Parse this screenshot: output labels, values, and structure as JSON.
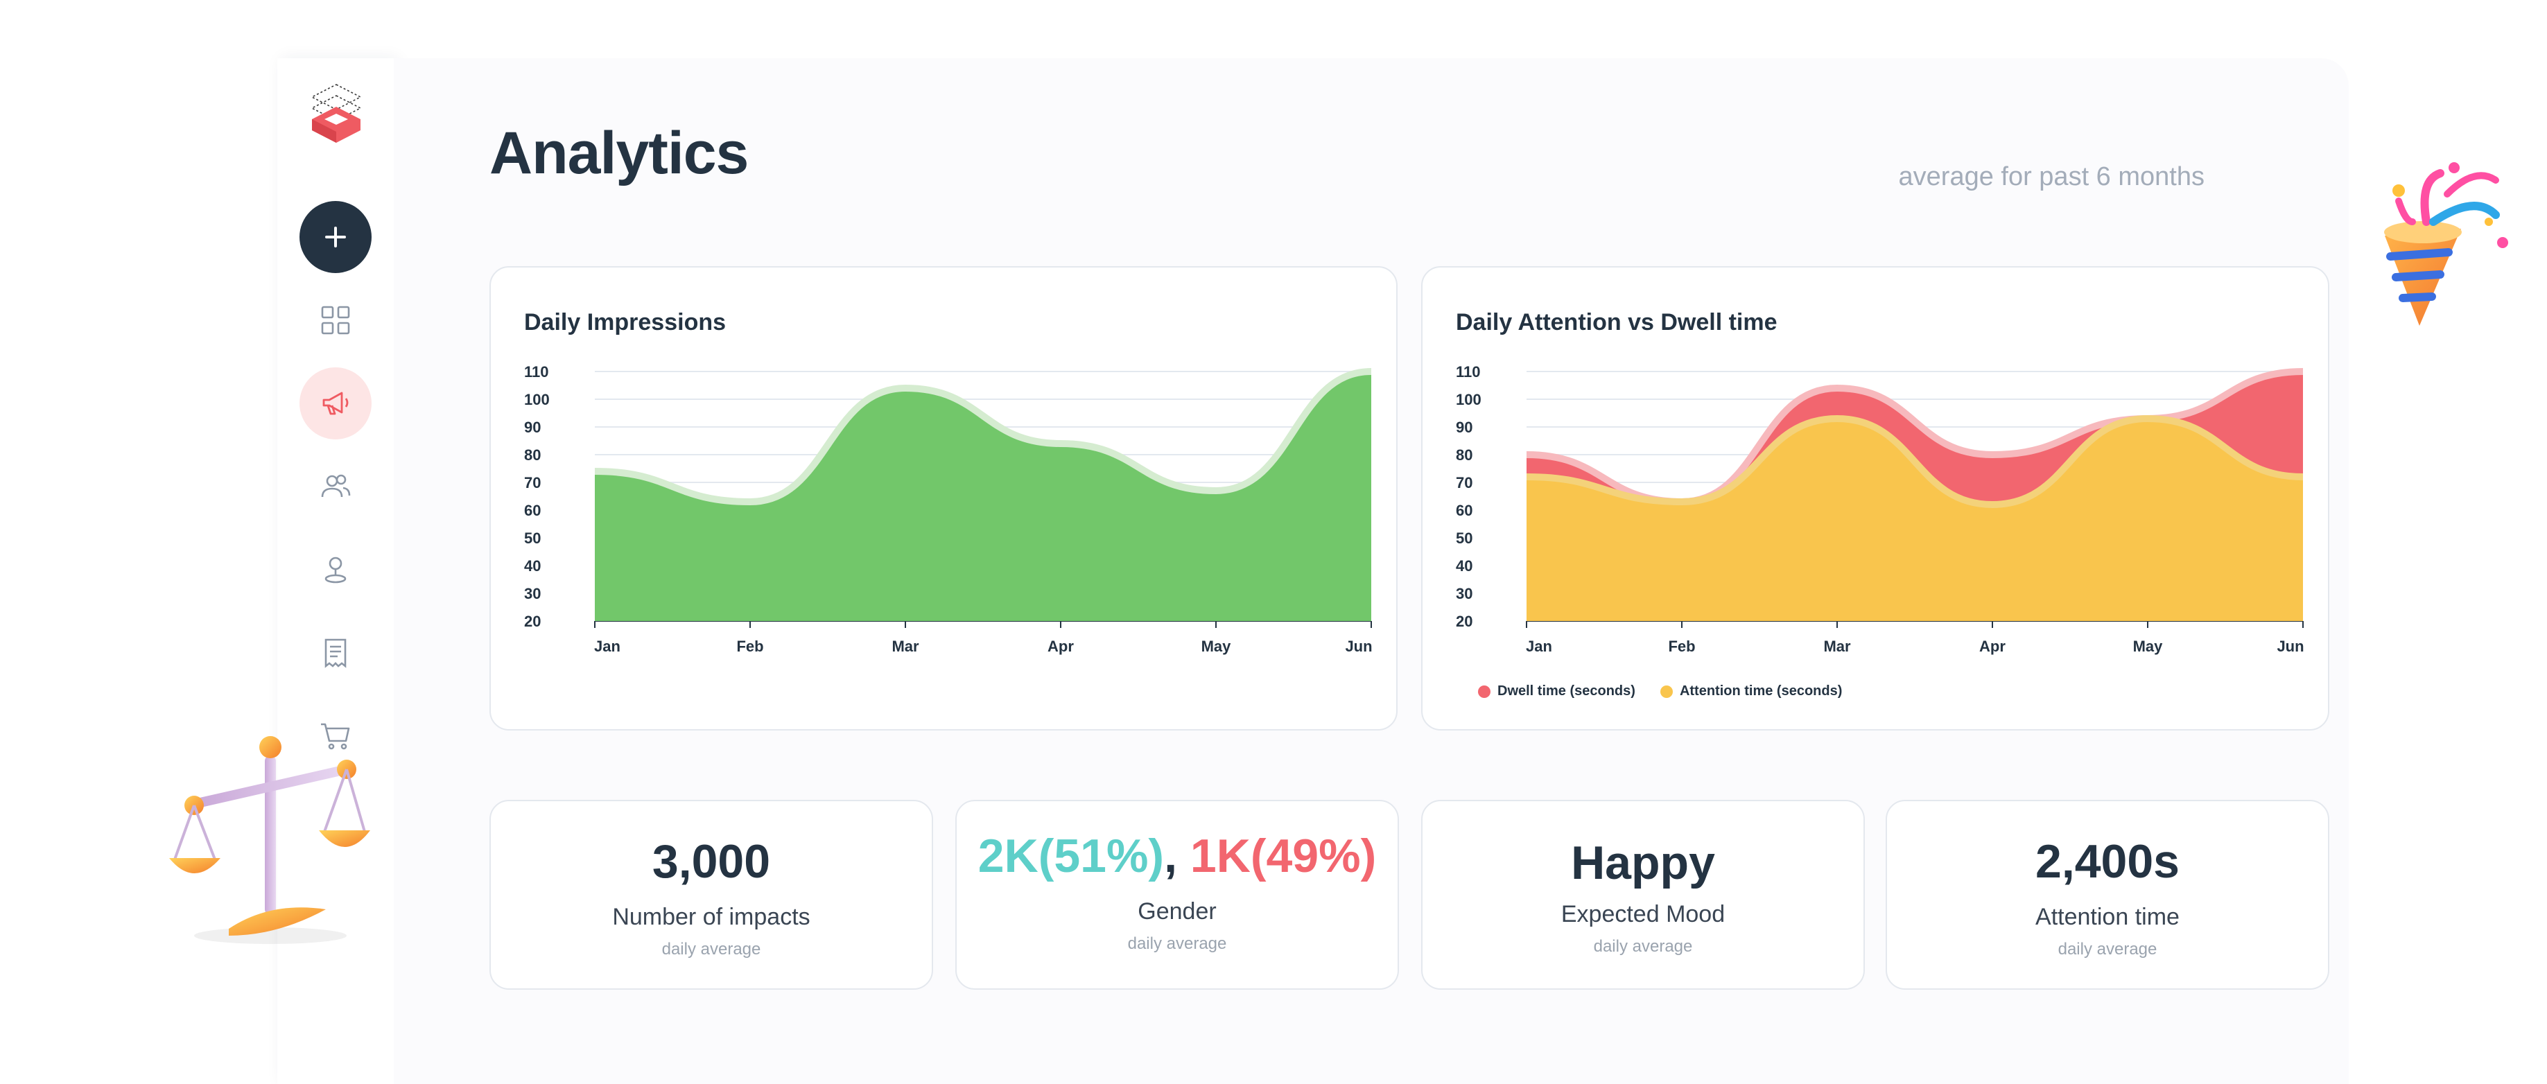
{
  "app": {
    "title": "Analytics",
    "subtitle": "average for past 6 months"
  },
  "sidebar": {
    "items": [
      {
        "icon": "plus-icon",
        "active": false
      },
      {
        "icon": "grid-icon",
        "active": false
      },
      {
        "icon": "megaphone-icon",
        "active": true
      },
      {
        "icon": "users-icon",
        "active": false
      },
      {
        "icon": "location-pin-icon",
        "active": false
      },
      {
        "icon": "receipt-icon",
        "active": false
      },
      {
        "icon": "cart-icon",
        "active": false
      }
    ]
  },
  "colors": {
    "green": "#72c76a",
    "green_light": "#d5ecd0",
    "red": "#f2666f",
    "yellow": "#f9c54d",
    "navy": "#243342",
    "accent_light": "#fde5e5",
    "teal": "#5ecfc9"
  },
  "chart_data": [
    {
      "type": "area",
      "title": "Daily Impressions",
      "categories": [
        "Jan",
        "Feb",
        "Mar",
        "Apr",
        "May",
        "Jun"
      ],
      "series": [
        {
          "values": [
            74,
            63,
            104,
            84,
            67,
            110
          ]
        }
      ],
      "yticks": [
        20,
        30,
        40,
        50,
        60,
        70,
        80,
        90,
        100,
        110
      ],
      "ylim": [
        20,
        110
      ],
      "grid": true
    },
    {
      "type": "area",
      "title": "Daily Attention vs Dwell time",
      "categories": [
        "Jan",
        "Feb",
        "Mar",
        "Apr",
        "May",
        "Jun"
      ],
      "series": [
        {
          "name": "Dwell time (seconds)",
          "values": [
            80,
            63,
            104,
            80,
            93,
            110
          ],
          "color": "#f2666f"
        },
        {
          "name": "Attention time (seconds)",
          "values": [
            72,
            63,
            93,
            62,
            93,
            72
          ],
          "color": "#f9c54d"
        }
      ],
      "yticks": [
        20,
        30,
        40,
        50,
        60,
        70,
        80,
        90,
        100,
        110
      ],
      "ylim": [
        20,
        110
      ],
      "grid": true,
      "legend": "bottom-left"
    }
  ],
  "stats": [
    {
      "value": "3,000",
      "label": "Number of impacts",
      "note": "daily average"
    },
    {
      "value_a": "2K(51%)",
      "sep": ",",
      "value_b": "1K(49%)",
      "label": "Gender",
      "note": "daily average"
    },
    {
      "value": "Happy",
      "label": "Expected Mood",
      "note": "daily average"
    },
    {
      "value": "2,400s",
      "label": "Attention time",
      "note": "daily average"
    }
  ]
}
